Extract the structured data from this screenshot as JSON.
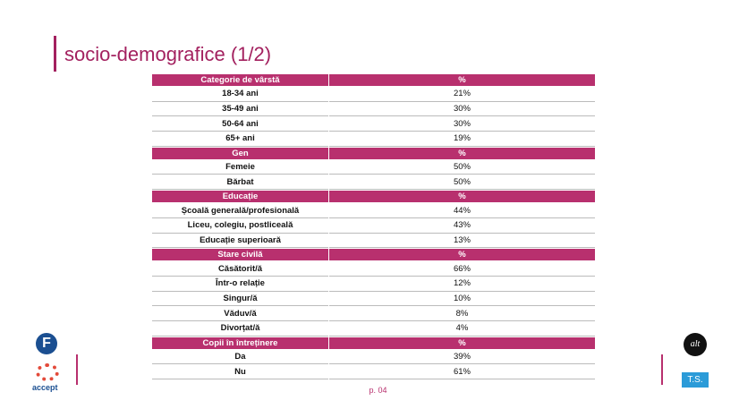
{
  "title": "socio-demografice (1/2)",
  "table": {
    "sections": [
      {
        "header": [
          "Categorie de vârstă",
          "%"
        ],
        "rows": [
          [
            "18-34 ani",
            "21%"
          ],
          [
            "35-49 ani",
            "30%"
          ],
          [
            "50-64 ani",
            "30%"
          ],
          [
            "65+ ani",
            "19%"
          ]
        ]
      },
      {
        "header": [
          "Gen",
          "%"
        ],
        "rows": [
          [
            "Femeie",
            "50%"
          ],
          [
            "Bărbat",
            "50%"
          ]
        ]
      },
      {
        "header": [
          "Educație",
          "%"
        ],
        "rows": [
          [
            "Școală generală/profesională",
            "44%"
          ],
          [
            "Liceu, colegiu, postliceală",
            "43%"
          ],
          [
            "Educație superioară",
            "13%"
          ]
        ]
      },
      {
        "header": [
          "Stare civilă",
          "%"
        ],
        "rows": [
          [
            "Căsătorit/ă",
            "66%"
          ],
          [
            "Într-o relație",
            "12%"
          ],
          [
            "Singur/ă",
            "10%"
          ],
          [
            "Văduv/ă",
            "8%"
          ],
          [
            "Divorțat/ă",
            "4%"
          ]
        ]
      },
      {
        "header": [
          "Copii în întreținere",
          "%"
        ],
        "rows": [
          [
            "Da",
            "39%"
          ],
          [
            "Nu",
            "61%"
          ]
        ]
      }
    ]
  },
  "page_number": "p. 04",
  "logos": {
    "left_top": "F",
    "left_bottom": "accept",
    "right_top": "alt",
    "right_bottom": "T.S."
  }
}
